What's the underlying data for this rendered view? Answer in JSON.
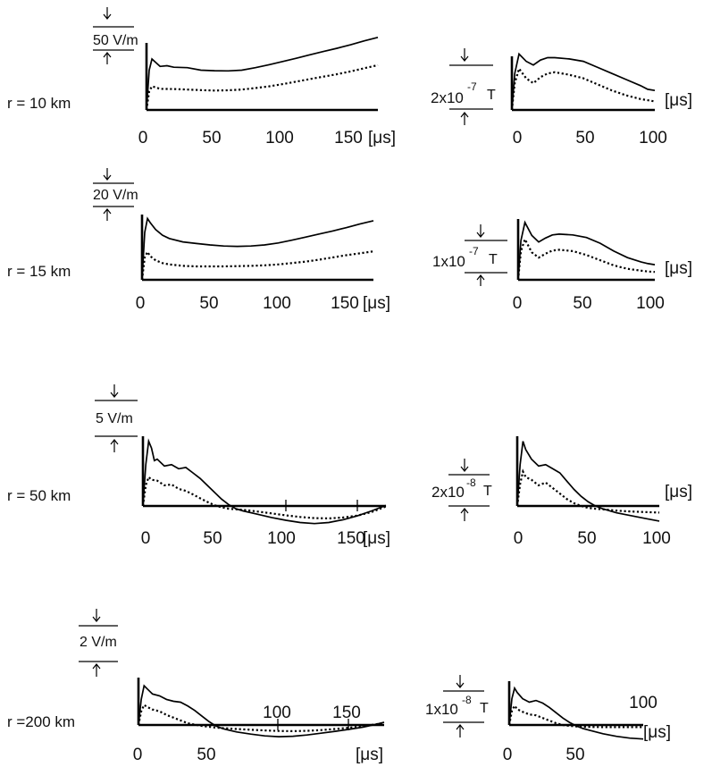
{
  "figure": {
    "rows": [
      {
        "label": "r = 10 km",
        "field_scale": {
          "value": "50 V/m",
          "prefix": "",
          "exponent": "",
          "unit": ""
        },
        "flux_scale": {
          "value": "",
          "prefix": "2x10",
          "exponent": "-7",
          "unit": "T"
        }
      },
      {
        "label": "r = 15 km",
        "field_scale": {
          "value": "20 V/m",
          "prefix": "",
          "exponent": "",
          "unit": ""
        },
        "flux_scale": {
          "value": "",
          "prefix": "1x10",
          "exponent": "-7",
          "unit": "T"
        }
      },
      {
        "label": "r = 50 km",
        "field_scale": {
          "value": "5 V/m",
          "prefix": "",
          "exponent": "",
          "unit": ""
        },
        "flux_scale": {
          "value": "",
          "prefix": "2x10",
          "exponent": "-8",
          "unit": "T"
        }
      },
      {
        "label": "r =200 km",
        "field_scale": {
          "value": "2 V/m",
          "prefix": "",
          "exponent": "",
          "unit": ""
        },
        "flux_scale": {
          "value": "",
          "prefix": "1x10",
          "exponent": "-8",
          "unit": "T"
        }
      }
    ]
  },
  "chart_data": [
    {
      "id": "e10",
      "type": "line",
      "x_unit": "[μs]",
      "x_ticks": [
        "0",
        "50",
        "100",
        "150"
      ],
      "xlim": [
        0,
        170
      ],
      "ylim": [
        0,
        3.2
      ],
      "scale_bar": "50 V/m",
      "series": [
        {
          "style": "solid",
          "x": [
            0,
            2,
            4,
            6,
            10,
            15,
            20,
            30,
            40,
            50,
            60,
            70,
            80,
            90,
            100,
            110,
            120,
            130,
            140,
            150,
            160,
            170
          ],
          "y": [
            0,
            1.6,
            2.05,
            1.95,
            1.75,
            1.78,
            1.72,
            1.7,
            1.6,
            1.58,
            1.57,
            1.6,
            1.7,
            1.82,
            1.95,
            2.08,
            2.22,
            2.35,
            2.48,
            2.62,
            2.78,
            2.92
          ]
        },
        {
          "style": "dotted",
          "x": [
            0,
            2,
            4,
            6,
            10,
            20,
            30,
            40,
            50,
            60,
            70,
            80,
            90,
            100,
            110,
            120,
            130,
            140,
            150,
            160,
            170
          ],
          "y": [
            0,
            0.75,
            0.95,
            0.92,
            0.85,
            0.84,
            0.82,
            0.8,
            0.78,
            0.79,
            0.82,
            0.88,
            0.95,
            1.04,
            1.14,
            1.24,
            1.34,
            1.44,
            1.55,
            1.68,
            1.8
          ]
        }
      ]
    },
    {
      "id": "b10",
      "type": "line",
      "x_unit": "[μs]",
      "x_ticks": [
        "0",
        "50",
        "100"
      ],
      "xlim": [
        0,
        100
      ],
      "ylim": [
        0,
        2.5
      ],
      "scale_bar": "2x10^-7 T",
      "series": [
        {
          "style": "solid",
          "x": [
            0,
            2,
            5,
            10,
            15,
            20,
            25,
            30,
            40,
            50,
            60,
            70,
            80,
            90,
            95,
            100
          ],
          "y": [
            0,
            1.5,
            2.3,
            2.0,
            1.85,
            2.05,
            2.15,
            2.15,
            2.1,
            2.0,
            1.75,
            1.5,
            1.25,
            1.0,
            0.85,
            0.8
          ]
        },
        {
          "style": "dotted",
          "x": [
            0,
            2,
            5,
            10,
            15,
            20,
            25,
            30,
            40,
            50,
            60,
            70,
            80,
            90,
            95,
            100
          ],
          "y": [
            0,
            1.1,
            1.7,
            1.3,
            1.1,
            1.35,
            1.5,
            1.55,
            1.45,
            1.3,
            1.05,
            0.8,
            0.6,
            0.45,
            0.4,
            0.35
          ]
        }
      ]
    },
    {
      "id": "e15",
      "type": "line",
      "x_unit": "[μs]",
      "x_ticks": [
        "0",
        "50",
        "100",
        "150"
      ],
      "xlim": [
        0,
        170
      ],
      "ylim": [
        0,
        2.5
      ],
      "scale_bar": "20 V/m",
      "series": [
        {
          "style": "solid",
          "x": [
            0,
            2,
            4,
            6,
            10,
            15,
            20,
            30,
            40,
            50,
            60,
            70,
            80,
            90,
            100,
            110,
            120,
            130,
            140,
            150,
            160,
            170
          ],
          "y": [
            0,
            1.7,
            2.2,
            2.05,
            1.8,
            1.6,
            1.48,
            1.36,
            1.3,
            1.25,
            1.21,
            1.2,
            1.21,
            1.25,
            1.32,
            1.42,
            1.53,
            1.64,
            1.75,
            1.87,
            2.0,
            2.12
          ]
        },
        {
          "style": "dotted",
          "x": [
            0,
            2,
            4,
            6,
            10,
            15,
            20,
            30,
            40,
            50,
            60,
            70,
            80,
            90,
            100,
            110,
            120,
            130,
            140,
            150,
            160,
            170
          ],
          "y": [
            0,
            0.8,
            1.0,
            0.85,
            0.7,
            0.6,
            0.55,
            0.5,
            0.48,
            0.48,
            0.48,
            0.49,
            0.5,
            0.52,
            0.55,
            0.6,
            0.65,
            0.72,
            0.8,
            0.88,
            0.95,
            1.02
          ]
        }
      ]
    },
    {
      "id": "b15",
      "type": "line",
      "x_unit": "[μs]",
      "x_ticks": [
        "0",
        "50",
        "100"
      ],
      "xlim": [
        0,
        100
      ],
      "ylim": [
        0,
        2.5
      ],
      "scale_bar": "1x10^-7 T",
      "series": [
        {
          "style": "solid",
          "x": [
            0,
            2,
            5,
            10,
            15,
            20,
            25,
            30,
            40,
            50,
            60,
            70,
            80,
            90,
            95,
            100
          ],
          "y": [
            0,
            1.5,
            2.2,
            1.7,
            1.45,
            1.6,
            1.72,
            1.75,
            1.72,
            1.62,
            1.4,
            1.1,
            0.85,
            0.68,
            0.62,
            0.58
          ]
        },
        {
          "style": "dotted",
          "x": [
            0,
            2,
            5,
            10,
            15,
            20,
            25,
            30,
            40,
            50,
            60,
            70,
            80,
            90,
            95,
            100
          ],
          "y": [
            0,
            1.1,
            1.55,
            1.05,
            0.85,
            1.0,
            1.12,
            1.15,
            1.1,
            0.95,
            0.75,
            0.55,
            0.42,
            0.35,
            0.32,
            0.3
          ]
        }
      ]
    },
    {
      "id": "e50",
      "type": "line",
      "x_unit": "[μs]",
      "x_ticks": [
        "0",
        "50",
        "100",
        "150"
      ],
      "xlim": [
        0,
        170
      ],
      "ylim": [
        -0.7,
        2.5
      ],
      "scale_bar": "5 V/m",
      "series": [
        {
          "style": "solid",
          "x": [
            0,
            2,
            4,
            6,
            8,
            10,
            15,
            20,
            25,
            30,
            35,
            40,
            45,
            50,
            55,
            60,
            65,
            70,
            80,
            90,
            100,
            110,
            120,
            130,
            140,
            150,
            160,
            170
          ],
          "y": [
            0,
            1.5,
            2.35,
            2.1,
            1.65,
            1.7,
            1.45,
            1.5,
            1.35,
            1.4,
            1.2,
            1.0,
            0.75,
            0.5,
            0.25,
            0.05,
            -0.1,
            -0.18,
            -0.3,
            -0.42,
            -0.52,
            -0.6,
            -0.64,
            -0.6,
            -0.5,
            -0.36,
            -0.18,
            0.02
          ]
        },
        {
          "style": "dotted",
          "x": [
            0,
            2,
            4,
            6,
            10,
            15,
            20,
            25,
            30,
            35,
            40,
            45,
            50,
            55,
            60,
            65,
            70,
            80,
            90,
            100,
            110,
            120,
            130,
            140,
            150,
            160,
            170
          ],
          "y": [
            0,
            0.75,
            1.05,
            0.95,
            0.92,
            0.75,
            0.78,
            0.62,
            0.55,
            0.42,
            0.28,
            0.15,
            0.03,
            -0.05,
            -0.1,
            -0.12,
            -0.14,
            -0.2,
            -0.27,
            -0.34,
            -0.4,
            -0.44,
            -0.45,
            -0.42,
            -0.35,
            -0.22,
            -0.02
          ]
        }
      ]
    },
    {
      "id": "b50",
      "type": "line",
      "x_unit": "[μs]",
      "x_ticks": [
        "0",
        "50",
        "100"
      ],
      "xlim": [
        0,
        100
      ],
      "ylim": [
        -0.7,
        2.5
      ],
      "scale_bar": "2x10^-8 T",
      "series": [
        {
          "style": "solid",
          "x": [
            0,
            2,
            4,
            6,
            10,
            15,
            20,
            25,
            30,
            35,
            40,
            45,
            50,
            55,
            60,
            70,
            80,
            90,
            100
          ],
          "y": [
            0,
            1.5,
            2.35,
            2.05,
            1.7,
            1.45,
            1.5,
            1.35,
            1.2,
            0.9,
            0.6,
            0.35,
            0.15,
            0.0,
            -0.1,
            -0.25,
            -0.35,
            -0.45,
            -0.55
          ]
        },
        {
          "style": "dotted",
          "x": [
            0,
            2,
            4,
            6,
            10,
            15,
            20,
            25,
            30,
            35,
            40,
            45,
            50,
            55,
            60,
            70,
            80,
            90,
            100
          ],
          "y": [
            0,
            0.8,
            1.25,
            1.05,
            0.95,
            0.75,
            0.85,
            0.65,
            0.45,
            0.25,
            0.1,
            0.0,
            -0.07,
            -0.1,
            -0.12,
            -0.17,
            -0.2,
            -0.22,
            -0.24
          ]
        }
      ]
    },
    {
      "id": "e200",
      "type": "line",
      "x_unit": "[μs]",
      "x_ticks": [
        "0",
        "50",
        "100",
        "150"
      ],
      "xlim": [
        0,
        175
      ],
      "ylim": [
        -0.8,
        2.5
      ],
      "scale_bar": "2 V/m",
      "series": [
        {
          "style": "solid",
          "x": [
            0,
            2,
            4,
            6,
            10,
            15,
            20,
            25,
            30,
            35,
            40,
            45,
            50,
            55,
            60,
            70,
            80,
            90,
            100,
            110,
            120,
            130,
            140,
            150,
            160,
            170,
            175
          ],
          "y": [
            0,
            1.4,
            2.15,
            2.0,
            1.7,
            1.6,
            1.4,
            1.3,
            1.25,
            1.05,
            0.8,
            0.5,
            0.2,
            -0.05,
            -0.2,
            -0.38,
            -0.5,
            -0.6,
            -0.64,
            -0.62,
            -0.55,
            -0.45,
            -0.35,
            -0.24,
            -0.12,
            0.05,
            0.15
          ]
        },
        {
          "style": "dotted",
          "x": [
            0,
            2,
            4,
            6,
            10,
            15,
            20,
            25,
            30,
            35,
            40,
            45,
            50,
            55,
            60,
            70,
            80,
            90,
            100,
            110,
            120,
            130,
            140,
            150,
            160,
            170,
            175
          ],
          "y": [
            0,
            0.75,
            1.1,
            1.0,
            0.85,
            0.75,
            0.55,
            0.4,
            0.25,
            0.1,
            0.02,
            -0.05,
            -0.1,
            -0.14,
            -0.17,
            -0.22,
            -0.26,
            -0.3,
            -0.33,
            -0.34,
            -0.32,
            -0.28,
            -0.22,
            -0.15,
            -0.07,
            0.05,
            0.12
          ]
        }
      ]
    },
    {
      "id": "b200",
      "type": "line",
      "x_unit": "[μs]",
      "x_ticks": [
        "0",
        "50",
        "100"
      ],
      "xlim": [
        0,
        100
      ],
      "ylim": [
        -0.8,
        2.5
      ],
      "scale_bar": "1x10^-8 T",
      "series": [
        {
          "style": "solid",
          "x": [
            0,
            2,
            4,
            6,
            10,
            15,
            20,
            25,
            30,
            35,
            40,
            45,
            50,
            55,
            60,
            70,
            80,
            90,
            100
          ],
          "y": [
            0,
            1.5,
            2.1,
            1.85,
            1.5,
            1.3,
            1.4,
            1.25,
            1.0,
            0.7,
            0.4,
            0.15,
            -0.05,
            -0.2,
            -0.3,
            -0.5,
            -0.65,
            -0.75,
            -0.8
          ]
        },
        {
          "style": "dotted",
          "x": [
            0,
            2,
            4,
            6,
            10,
            15,
            20,
            25,
            30,
            35,
            40,
            45,
            50,
            55,
            60,
            70,
            80,
            90,
            100
          ],
          "y": [
            0,
            0.8,
            1.1,
            0.9,
            0.75,
            0.6,
            0.55,
            0.4,
            0.25,
            0.1,
            0.0,
            -0.05,
            -0.08,
            -0.1,
            -0.11,
            -0.12,
            -0.12,
            -0.12,
            -0.12
          ]
        }
      ]
    }
  ]
}
